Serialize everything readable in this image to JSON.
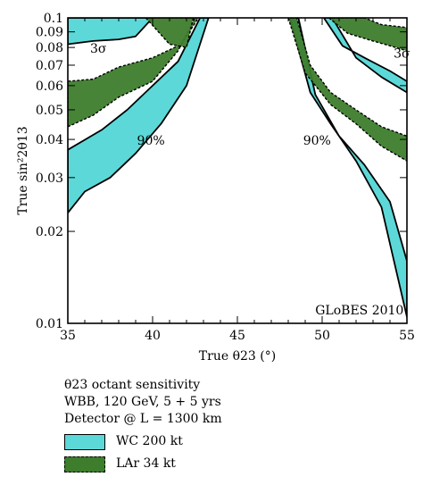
{
  "chart_data": {
    "type": "area",
    "xlabel": "True θ23 (°)",
    "ylabel": "True sin²2θ13",
    "xlim": [
      35,
      55
    ],
    "ylim": [
      0.01,
      0.1
    ],
    "yscale": "log",
    "xticks": [
      "35",
      "40",
      "45",
      "50",
      "55"
    ],
    "yticks": [
      "0.01",
      "0.02",
      "0.03",
      "0.04",
      "0.05",
      "0.06",
      "0.07",
      "0.08",
      "0.09",
      "0.1"
    ],
    "annotations": [
      {
        "text": "3σ",
        "x": 36.8,
        "y": 0.077
      },
      {
        "text": "3σ",
        "x": 54.7,
        "y": 0.074
      },
      {
        "text": "90%",
        "x": 39.9,
        "y": 0.0385
      },
      {
        "text": "90%",
        "x": 49.7,
        "y": 0.0385
      },
      {
        "text": "GLoBES 2010",
        "x": 52.2,
        "y": 0.0107
      }
    ],
    "series": [
      {
        "name": "WC 200 kt",
        "color": "#5cd8d8",
        "regions": [
          {
            "label": "90%",
            "side": "left",
            "outer": [
              [
                35,
                0.023
              ],
              [
                36,
                0.027
              ],
              [
                37.5,
                0.03
              ],
              [
                39,
                0.036
              ],
              [
                40.5,
                0.045
              ],
              [
                42,
                0.06
              ],
              [
                43.3,
                0.1
              ]
            ],
            "inner": [
              [
                42.8,
                0.1
              ],
              [
                41.5,
                0.072
              ],
              [
                40,
                0.06
              ],
              [
                38.5,
                0.05
              ],
              [
                37,
                0.043
              ],
              [
                35,
                0.037
              ]
            ]
          },
          {
            "label": "3σ",
            "side": "left",
            "outer": [
              [
                35,
                0.082
              ],
              [
                36.5,
                0.084
              ],
              [
                38,
                0.085
              ],
              [
                39,
                0.087
              ],
              [
                40,
                0.1
              ]
            ],
            "inner": [
              [
                37.5,
                0.1
              ],
              [
                35,
                0.1
              ]
            ]
          },
          {
            "label": "90%",
            "side": "right",
            "outer": [
              [
                48.1,
                0.1
              ],
              [
                49.3,
                0.057
              ],
              [
                50.5,
                0.045
              ],
              [
                52,
                0.034
              ],
              [
                53.5,
                0.024
              ],
              [
                55,
                0.0105
              ]
            ],
            "inner": [
              [
                55,
                0.016
              ],
              [
                54,
                0.025
              ],
              [
                52.5,
                0.033
              ],
              [
                51,
                0.041
              ],
              [
                49.6,
                0.056
              ],
              [
                48.6,
                0.1
              ]
            ]
          },
          {
            "label": "3σ",
            "side": "right",
            "outer": [
              [
                50.1,
                0.1
              ],
              [
                51.2,
                0.081
              ],
              [
                52.5,
                0.074
              ],
              [
                54,
                0.067
              ],
              [
                55,
                0.062
              ]
            ],
            "inner": [
              [
                55,
                0.057
              ],
              [
                53.5,
                0.064
              ],
              [
                52,
                0.074
              ],
              [
                50.6,
                0.1
              ]
            ]
          }
        ]
      },
      {
        "name": "LAr 34 kt",
        "color": "#3d7d2c",
        "regions": [
          {
            "label": "90%",
            "side": "left",
            "outer": [
              [
                35,
                0.044
              ],
              [
                36.5,
                0.048
              ],
              [
                38,
                0.055
              ],
              [
                40,
                0.062
              ],
              [
                41.5,
                0.078
              ],
              [
                42.5,
                0.1
              ]
            ],
            "inner": [
              [
                42.7,
                0.1
              ],
              [
                41.7,
                0.082
              ],
              [
                40,
                0.074
              ],
              [
                38,
                0.069
              ],
              [
                36.5,
                0.063
              ],
              [
                35,
                0.062
              ]
            ]
          },
          {
            "label": "3σ",
            "side": "left",
            "outer": [
              [
                39.6,
                0.1
              ],
              [
                41,
                0.082
              ],
              [
                42,
                0.08
              ],
              [
                42.4,
                0.1
              ]
            ],
            "inner": []
          },
          {
            "label": "90%",
            "side": "right",
            "outer": [
              [
                48,
                0.1
              ],
              [
                49,
                0.066
              ],
              [
                50.5,
                0.052
              ],
              [
                52,
                0.045
              ],
              [
                53.5,
                0.038
              ],
              [
                55,
                0.034
              ]
            ],
            "inner": [
              [
                55,
                0.041
              ],
              [
                53.5,
                0.044
              ],
              [
                52,
                0.05
              ],
              [
                50.5,
                0.057
              ],
              [
                49.3,
                0.07
              ],
              [
                48.5,
                0.1
              ]
            ]
          },
          {
            "label": "3σ",
            "side": "right",
            "outer": [
              [
                50.4,
                0.1
              ],
              [
                51.5,
                0.089
              ],
              [
                53,
                0.084
              ],
              [
                54,
                0.081
              ],
              [
                55,
                0.078
              ]
            ],
            "inner": [
              [
                55,
                0.093
              ],
              [
                53.5,
                0.095
              ],
              [
                52.5,
                0.1
              ]
            ]
          }
        ]
      }
    ]
  },
  "legend": {
    "title": "θ23 octant sensitivity",
    "line1": "WBB, 120 GeV, 5 + 5 yrs",
    "line2": "Detector @ L = 1300 km",
    "wc_label": "WC 200 kt",
    "lar_label": "LAr 34 kt"
  }
}
